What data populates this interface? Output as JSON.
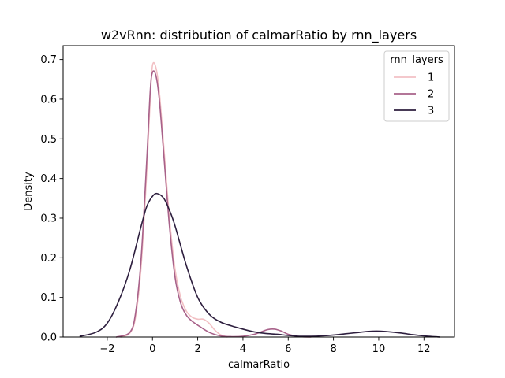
{
  "chart_data": {
    "type": "line",
    "title": "w2vRnn: distribution of calmarRatio by rnn_layers",
    "xlabel": "calmarRatio",
    "ylabel": "Density",
    "xlim": [
      -3.95,
      13.35
    ],
    "ylim": [
      0,
      0.735
    ],
    "xticks": [
      "−2",
      "0",
      "2",
      "4",
      "6",
      "8",
      "10",
      "12"
    ],
    "xtick_values": [
      -2,
      0,
      2,
      4,
      6,
      8,
      10,
      12
    ],
    "yticks": [
      "0.0",
      "0.1",
      "0.2",
      "0.3",
      "0.4",
      "0.5",
      "0.6",
      "0.7"
    ],
    "ytick_values": [
      0.0,
      0.1,
      0.2,
      0.3,
      0.4,
      0.5,
      0.6,
      0.7
    ],
    "grid": false,
    "legend": {
      "title": "rnn_layers",
      "placement": "top-right"
    },
    "series": [
      {
        "name": "1",
        "color": "#f2c0c4",
        "x": [
          -1.4,
          -1.0,
          -0.75,
          -0.5,
          -0.25,
          -0.1,
          0.0,
          0.15,
          0.3,
          0.5,
          0.75,
          1.0,
          1.25,
          1.5,
          1.75,
          2.0,
          2.25,
          2.5,
          2.75,
          3.0,
          3.3
        ],
        "values": [
          0.0,
          0.01,
          0.05,
          0.18,
          0.42,
          0.6,
          0.685,
          0.68,
          0.62,
          0.48,
          0.3,
          0.17,
          0.1,
          0.065,
          0.05,
          0.045,
          0.045,
          0.035,
          0.018,
          0.006,
          0.0
        ]
      },
      {
        "name": "2",
        "color": "#a8628a",
        "x": [
          -1.6,
          -1.0,
          -0.75,
          -0.5,
          -0.25,
          -0.1,
          0.0,
          0.15,
          0.3,
          0.5,
          0.75,
          1.0,
          1.25,
          1.5,
          1.75,
          2.0,
          2.5,
          3.0,
          3.5,
          4.0,
          4.5,
          4.8,
          5.1,
          5.4,
          5.7,
          6.0,
          6.5,
          7.0
        ],
        "values": [
          0.0,
          0.012,
          0.06,
          0.2,
          0.45,
          0.62,
          0.668,
          0.66,
          0.6,
          0.46,
          0.28,
          0.15,
          0.085,
          0.055,
          0.04,
          0.03,
          0.012,
          0.003,
          0.001,
          0.002,
          0.007,
          0.013,
          0.019,
          0.02,
          0.015,
          0.007,
          0.001,
          0.0
        ]
      },
      {
        "name": "3",
        "color": "#2d1e3e",
        "x": [
          -3.2,
          -2.5,
          -2.0,
          -1.5,
          -1.0,
          -0.5,
          -0.25,
          0.0,
          0.2,
          0.5,
          0.75,
          1.0,
          1.5,
          2.0,
          2.5,
          3.0,
          3.5,
          4.0,
          4.5,
          5.0,
          5.5,
          6.0,
          6.5,
          7.0,
          7.5,
          8.0,
          8.5,
          9.0,
          9.5,
          9.9,
          10.3,
          11.0,
          11.5,
          12.0,
          12.7
        ],
        "values": [
          0.002,
          0.012,
          0.035,
          0.09,
          0.17,
          0.28,
          0.33,
          0.355,
          0.362,
          0.35,
          0.32,
          0.28,
          0.18,
          0.1,
          0.058,
          0.038,
          0.028,
          0.02,
          0.013,
          0.009,
          0.007,
          0.004,
          0.002,
          0.002,
          0.003,
          0.005,
          0.008,
          0.011,
          0.014,
          0.015,
          0.014,
          0.01,
          0.006,
          0.003,
          0.0
        ]
      }
    ]
  }
}
